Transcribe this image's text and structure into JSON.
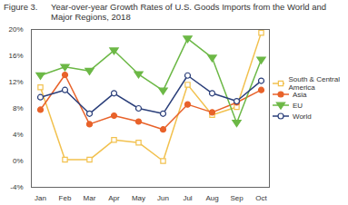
{
  "chart_data": {
    "type": "line",
    "figure_number": "Figure 3.",
    "title": "Year-over-year Growth Rates of U.S. Goods Imports from the World and Major Regions, 2018",
    "categories": [
      "Jan",
      "Feb",
      "Mar",
      "Apr",
      "May",
      "Jun",
      "Jul",
      "Aug",
      "Sep",
      "Oct"
    ],
    "series": [
      {
        "name": "South & Central America",
        "color": "#f2c14e",
        "marker": "open-square",
        "values": [
          11.2,
          0.2,
          0.2,
          3.2,
          2.8,
          0.0,
          11.6,
          7.0,
          8.2,
          19.5
        ]
      },
      {
        "name": "Asia",
        "color": "#e8622a",
        "marker": "filled-circle",
        "values": [
          7.8,
          13.1,
          5.6,
          6.9,
          6.0,
          4.8,
          8.6,
          7.4,
          8.9,
          10.8
        ]
      },
      {
        "name": "EU",
        "color": "#6cb846",
        "marker": "filled-triangle-down",
        "values": [
          13.0,
          14.3,
          13.7,
          16.8,
          13.2,
          10.7,
          18.6,
          15.7,
          5.8,
          15.4
        ]
      },
      {
        "name": "World",
        "color": "#2b3f7a",
        "marker": "open-circle",
        "values": [
          9.7,
          10.8,
          7.2,
          10.3,
          8.0,
          7.2,
          13.0,
          10.3,
          9.1,
          12.2
        ]
      }
    ],
    "ylim": [
      -4,
      20
    ],
    "yticks": [
      {
        "value": -4,
        "label": "-4%"
      },
      {
        "value": 0,
        "label": "0%"
      },
      {
        "value": 4,
        "label": "4%"
      },
      {
        "value": 8,
        "label": "8%"
      },
      {
        "value": 12,
        "label": "12%"
      },
      {
        "value": 16,
        "label": "16%"
      },
      {
        "value": 20,
        "label": "20%"
      }
    ],
    "grid": false,
    "legend": "right"
  }
}
